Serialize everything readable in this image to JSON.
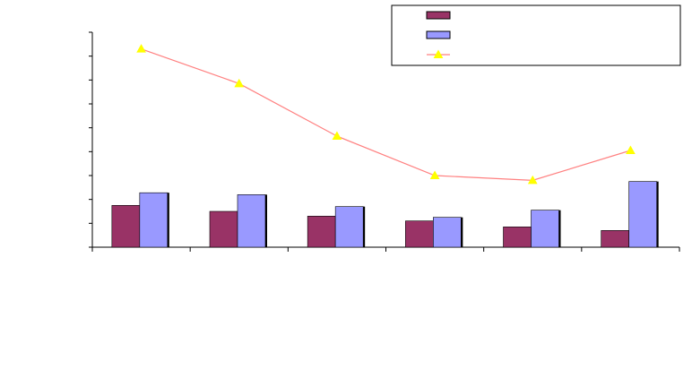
{
  "chart_data": {
    "type": "bar",
    "categories": [
      "",
      "",
      "",
      "",
      "",
      ""
    ],
    "series": [
      {
        "kind": "bar",
        "color": "#993366",
        "values": [
          1.75,
          1.5,
          1.3,
          1.1,
          0.85,
          0.7
        ]
      },
      {
        "kind": "bar",
        "color": "#9999FF",
        "values": [
          2.28,
          2.2,
          1.7,
          1.25,
          1.55,
          2.75
        ]
      },
      {
        "kind": "line",
        "color": "#FF8080",
        "marker": "triangle",
        "marker_color": "#FFFF00",
        "values": [
          8.3,
          6.85,
          4.65,
          3.0,
          2.8,
          4.05
        ]
      }
    ],
    "ylim": [
      0,
      9
    ],
    "yticks": 9,
    "title": "",
    "xlabel": "",
    "ylabel": "",
    "legend": {
      "placement": "top-right",
      "entries": [
        "",
        "",
        ""
      ]
    },
    "grid": false
  }
}
